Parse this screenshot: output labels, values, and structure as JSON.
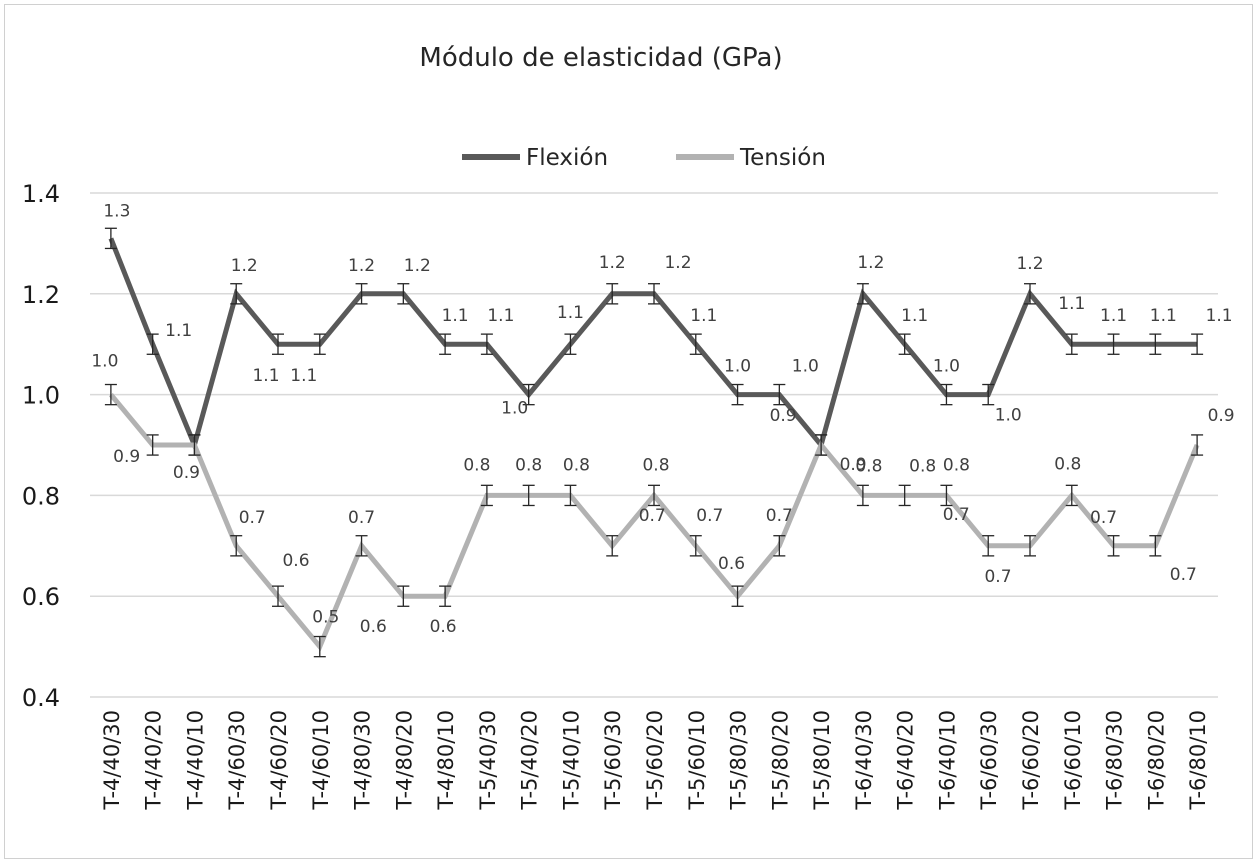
{
  "chart_data": {
    "type": "line",
    "title": "Módulo de elasticidad (GPa)",
    "xlabel": "",
    "ylabel": "",
    "ylim": [
      0.4,
      1.4
    ],
    "yticks": [
      "0.4",
      "0.6",
      "0.8",
      "1.0",
      "1.2",
      "1.4"
    ],
    "grid": true,
    "legend_position": "top-center",
    "error_bar": 0.02,
    "categories": [
      "T-4/40/30",
      "T-4/40/20",
      "T-4/40/10",
      "T-4/60/30",
      "T-4/60/20",
      "T-4/60/10",
      "T-4/80/30",
      "T-4/80/20",
      "T-4/80/10",
      "T-5/40/30",
      "T-5/40/20",
      "T-5/40/10",
      "T-5/60/30",
      "T-5/60/20",
      "T-5/60/10",
      "T-5/80/30",
      "T-5/80/20",
      "T-5/80/10",
      "T-6/40/30",
      "T-6/40/20",
      "T-6/40/10",
      "T-6/60/30",
      "T-6/60/20",
      "T-6/60/10",
      "T-6/80/30",
      "T-6/80/20",
      "T-6/80/10"
    ],
    "series": [
      {
        "name": "Flexión",
        "color": "#595959",
        "values": [
          1.31,
          1.1,
          0.9,
          1.2,
          1.1,
          1.1,
          1.2,
          1.2,
          1.1,
          1.1,
          1.0,
          1.1,
          1.2,
          1.2,
          1.1,
          1.0,
          1.0,
          0.9,
          1.2,
          1.1,
          1.0,
          1.0,
          1.2,
          1.1,
          1.1,
          1.1,
          1.1
        ],
        "labels": [
          "1.3",
          "1.1",
          "",
          "1.2",
          "1.1",
          "1.1",
          "1.2",
          "1.2",
          "1.1",
          "1.1",
          "1.0",
          "1.1",
          "1.2",
          "1.2",
          "1.1",
          "1.0",
          "1.0",
          "0.9",
          "1.2",
          "1.1",
          "1.0",
          "1.0",
          "1.2",
          "1.1",
          "1.1",
          "1.1",
          "1.1"
        ]
      },
      {
        "name": "Tensión",
        "color": "#b2b2b2",
        "values": [
          1.0,
          0.9,
          0.9,
          0.7,
          0.6,
          0.5,
          0.7,
          0.6,
          0.6,
          0.8,
          0.8,
          0.8,
          0.7,
          0.8,
          0.7,
          0.6,
          0.7,
          0.9,
          0.8,
          0.8,
          0.8,
          0.7,
          0.7,
          0.8,
          0.7,
          0.7,
          0.9
        ],
        "labels": [
          "1.0",
          "0.9",
          "0.9",
          "0.7",
          "0.6",
          "0.5",
          "0.7",
          "0.6",
          "0.6",
          "0.8",
          "0.8",
          "0.8",
          "0.7",
          "0.8",
          "0.7",
          "0.6",
          "0.7",
          "0.9",
          "0.8",
          "0.8",
          "0.8",
          "0.7",
          "0.7",
          "0.8",
          "0.7",
          "0.7",
          "0.9"
        ]
      }
    ]
  }
}
